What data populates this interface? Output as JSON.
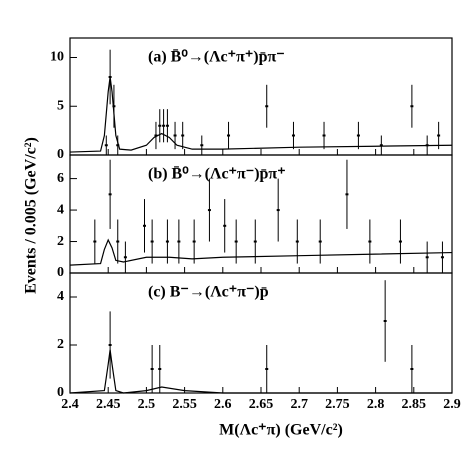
{
  "chart_data": [
    {
      "type": "errorbar",
      "title": "(a)  B̄⁰→(Λc⁺π⁺)p̄π⁻",
      "xlim": [
        2.4,
        2.9
      ],
      "ylim": [
        0,
        12
      ],
      "yticks": [
        0,
        5,
        10
      ],
      "x": [
        2.4475,
        2.4525,
        2.4575,
        2.4625,
        2.5125,
        2.5175,
        2.5225,
        2.5275,
        2.5375,
        2.5475,
        2.5725,
        2.6075,
        2.6575,
        2.6925,
        2.7325,
        2.7775,
        2.8075,
        2.8475,
        2.8675,
        2.8825
      ],
      "values": [
        1,
        8,
        5,
        1,
        2,
        3,
        3,
        3,
        2,
        2,
        1,
        2,
        5,
        2,
        2,
        2,
        1,
        5,
        1,
        2
      ],
      "errors": [
        1,
        2.8,
        2.2,
        1,
        1.4,
        1.7,
        1.7,
        1.7,
        1.4,
        1.4,
        1,
        1.4,
        2.2,
        1.4,
        1.4,
        1.4,
        1,
        2.2,
        1,
        1.4
      ],
      "curve": {
        "x": [
          2.4,
          2.44,
          2.445,
          2.45,
          2.4525,
          2.455,
          2.46,
          2.465,
          2.48,
          2.5,
          2.51,
          2.52,
          2.53,
          2.54,
          2.56,
          2.6,
          2.7,
          2.8,
          2.9
        ],
        "values": [
          0.3,
          0.4,
          2,
          6.5,
          8,
          6.5,
          2,
          0.6,
          0.5,
          1,
          1.8,
          2.2,
          1.8,
          1.0,
          0.6,
          0.6,
          0.8,
          0.9,
          1.0
        ]
      }
    },
    {
      "type": "errorbar",
      "title": "(b)  B̄⁰→(Λc⁺π⁻)p̄π⁺",
      "ylabel": "Events / 0.005 (GeV/c²)",
      "xlim": [
        2.4,
        2.9
      ],
      "ylim": [
        0,
        7.5
      ],
      "yticks": [
        0,
        2,
        4,
        6
      ],
      "x": [
        2.4325,
        2.4525,
        2.4625,
        2.4725,
        2.4975,
        2.5075,
        2.5275,
        2.5425,
        2.5625,
        2.5825,
        2.6025,
        2.6175,
        2.6425,
        2.6725,
        2.6975,
        2.7275,
        2.7625,
        2.7925,
        2.8325,
        2.8675,
        2.8875
      ],
      "values": [
        2,
        5,
        2,
        1,
        3,
        2,
        2,
        2,
        2,
        4,
        3,
        2,
        2,
        4,
        2,
        2,
        5,
        2,
        2,
        1,
        1
      ],
      "errors": [
        1.4,
        2.2,
        1.4,
        1,
        1.7,
        1.4,
        1.4,
        1.4,
        1.4,
        2,
        1.7,
        1.4,
        1.4,
        2,
        1.4,
        1.4,
        2.2,
        1.4,
        1.4,
        1,
        1
      ],
      "curve": {
        "x": [
          2.4,
          2.44,
          2.445,
          2.45,
          2.455,
          2.46,
          2.47,
          2.5,
          2.53,
          2.56,
          2.6,
          2.7,
          2.8,
          2.9
        ],
        "values": [
          0.5,
          0.6,
          1.5,
          2.1,
          1.6,
          0.8,
          0.7,
          1.0,
          1.0,
          0.9,
          1.0,
          1.1,
          1.2,
          1.3
        ]
      }
    },
    {
      "type": "errorbar",
      "title": "(c)  B⁻→(Λc⁺π⁻)p̄",
      "xlabel": "M(Λc⁺π)   (GeV/c²)",
      "xlim": [
        2.4,
        2.9
      ],
      "ylim": [
        0,
        5
      ],
      "yticks": [
        0,
        2,
        4
      ],
      "xticks": [
        2.4,
        2.45,
        2.5,
        2.55,
        2.6,
        2.65,
        2.7,
        2.75,
        2.8,
        2.85,
        2.9
      ],
      "x": [
        2.4525,
        2.5075,
        2.5175,
        2.6575,
        2.8125,
        2.8475
      ],
      "values": [
        2,
        1,
        1,
        1,
        3,
        1
      ],
      "errors": [
        1.4,
        1,
        1,
        1,
        1.7,
        1
      ],
      "curve": {
        "x": [
          2.4,
          2.445,
          2.45,
          2.4525,
          2.455,
          2.46,
          2.47,
          2.5,
          2.52,
          2.55,
          2.6,
          2.7,
          2.9
        ],
        "values": [
          0,
          0.1,
          1.2,
          1.8,
          1.2,
          0.1,
          0,
          0.1,
          0.25,
          0.1,
          0,
          0,
          0
        ]
      }
    }
  ]
}
